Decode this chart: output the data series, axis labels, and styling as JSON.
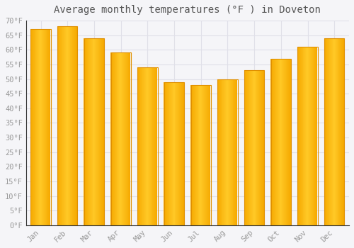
{
  "months": [
    "Jan",
    "Feb",
    "Mar",
    "Apr",
    "May",
    "Jun",
    "Jul",
    "Aug",
    "Sep",
    "Oct",
    "Nov",
    "Dec"
  ],
  "values": [
    67,
    68,
    64,
    59,
    54,
    49,
    48,
    50,
    53,
    57,
    61,
    64
  ],
  "bar_color_center": "#FFC926",
  "bar_color_edge": "#F5A800",
  "title": "Average monthly temperatures (°F ) in Doveton",
  "ylim": [
    0,
    70
  ],
  "yticks": [
    0,
    5,
    10,
    15,
    20,
    25,
    30,
    35,
    40,
    45,
    50,
    55,
    60,
    65,
    70
  ],
  "ytick_labels": [
    "0°F",
    "5°F",
    "10°F",
    "15°F",
    "20°F",
    "25°F",
    "30°F",
    "35°F",
    "40°F",
    "45°F",
    "50°F",
    "55°F",
    "60°F",
    "65°F",
    "70°F"
  ],
  "background_color": "#f5f5f8",
  "plot_bg_color": "#f5f5f8",
  "grid_color": "#e0e0e8",
  "title_fontsize": 10,
  "tick_fontsize": 7.5,
  "font_family": "monospace",
  "title_color": "#555555",
  "tick_color": "#999999"
}
